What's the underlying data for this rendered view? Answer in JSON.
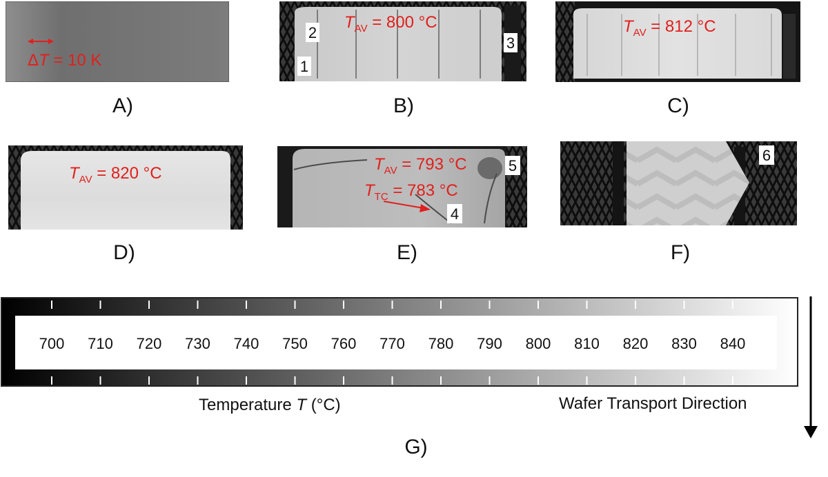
{
  "panels": {
    "A": {
      "label": "A)",
      "annotation_delta": "Δ",
      "annotation_T": "T",
      "annotation_rest": " = 10 K"
    },
    "B": {
      "label": "B)",
      "tav_T": "T",
      "tav_sub": "AV",
      "tav_value": " = 800 °C",
      "markers": [
        "1",
        "2",
        "3"
      ]
    },
    "C": {
      "label": "C)",
      "tav_T": "T",
      "tav_sub": "AV",
      "tav_value": " = 812 °C"
    },
    "D": {
      "label": "D)",
      "tav_T": "T",
      "tav_sub": "AV",
      "tav_value": " = 820 °C"
    },
    "E": {
      "label": "E)",
      "tav_T": "T",
      "tav_sub": "AV",
      "tav_value": " = 793 °C",
      "ttc_T": "T",
      "ttc_sub": "TC",
      "ttc_value": " = 783 °C",
      "markers": [
        "4",
        "5"
      ]
    },
    "F": {
      "label": "F)",
      "markers": [
        "6"
      ]
    }
  },
  "colorbar": {
    "label": "G)",
    "ticks": [
      "700",
      "710",
      "720",
      "730",
      "740",
      "750",
      "760",
      "770",
      "780",
      "790",
      "800",
      "810",
      "820",
      "830",
      "840"
    ],
    "title_prefix": "Temperature ",
    "title_symbol": "T",
    "title_unit": " (°C)",
    "direction_label": "Wafer Transport Direction"
  }
}
